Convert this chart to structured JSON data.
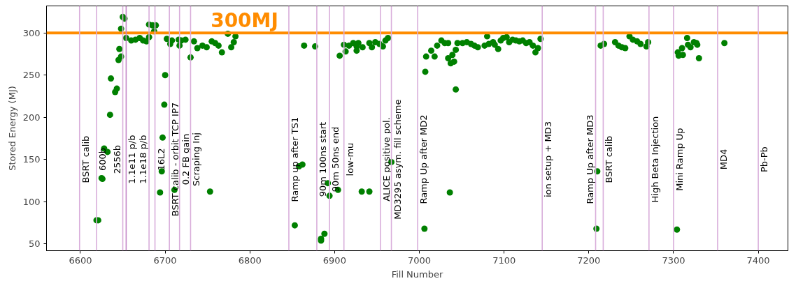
{
  "chart_data": {
    "type": "scatter",
    "xlabel": "Fill Number",
    "ylabel": "Stored Energy (MJ)",
    "marker": "circle",
    "grid": false,
    "xlim": [
      6560,
      7435
    ],
    "ylim": [
      42,
      332
    ],
    "xticks": [
      6600,
      6700,
      6800,
      6900,
      7000,
      7100,
      7200,
      7300,
      7400
    ],
    "yticks": [
      50,
      100,
      150,
      200,
      250,
      300
    ],
    "series": [
      {
        "color": "#008000",
        "x": [
          6619,
          6621,
          6625,
          6626,
          6628,
          6632,
          6635,
          6636,
          6641,
          6643,
          6645,
          6648,
          6646,
          6648,
          6650,
          6652,
          6654,
          6660,
          6665,
          6670,
          6674,
          6678,
          6681,
          6681,
          6685,
          6689,
          6687,
          6700,
          6699,
          6697,
          6696,
          6694,
          6711,
          6702,
          6706,
          6708,
          6716,
          6717,
          6719,
          6724,
          6730,
          6734,
          6738,
          6744,
          6749,
          6755,
          6759,
          6763,
          6767,
          6753,
          6774,
          6778,
          6781,
          6783,
          6853,
          6858,
          6862,
          6864,
          6877,
          6884,
          6884,
          6888,
          6892,
          6894,
          6904,
          6906,
          6911,
          6913,
          6917,
          6922,
          6926,
          6926,
          6928,
          6932,
          6933,
          6941,
          6941,
          6944,
          6948,
          6953,
          6957,
          6960,
          6963,
          6967,
          7006,
          7007,
          7008,
          7014,
          7018,
          7021,
          7026,
          7030,
          7034,
          7034,
          7037,
          7036,
          7039,
          7041,
          7043,
          7043,
          7045,
          7051,
          7056,
          7061,
          7065,
          7069,
          7077,
          7080,
          7082,
          7087,
          7089,
          7093,
          7096,
          7099,
          7103,
          7106,
          7110,
          7114,
          7118,
          7122,
          7126,
          7130,
          7134,
          7137,
          7140,
          7143,
          7209,
          7210,
          7214,
          7218,
          7231,
          7235,
          7239,
          7243,
          7248,
          7252,
          7257,
          7261,
          7268,
          7270,
          7304,
          7305,
          7306,
          7310,
          7311,
          7316,
          7317,
          7320,
          7324,
          7327,
          7328,
          7330,
          7360
        ],
        "values": [
          78,
          78,
          128,
          127,
          163,
          159,
          203,
          246,
          230,
          234,
          268,
          272,
          281,
          305,
          319,
          317,
          294,
          291,
          292,
          294,
          291,
          290,
          295,
          310,
          309,
          309,
          302,
          250,
          215,
          176,
          136,
          111,
          114,
          293,
          287,
          291,
          292,
          285,
          291,
          292,
          271,
          290,
          282,
          285,
          283,
          290,
          288,
          285,
          277,
          112,
          299,
          283,
          289,
          296,
          72,
          142,
          144,
          285,
          284,
          56,
          54,
          62,
          122,
          107,
          114,
          273,
          286,
          278,
          285,
          288,
          284,
          279,
          288,
          112,
          283,
          288,
          112,
          283,
          289,
          287,
          284,
          291,
          294,
          147,
          68,
          254,
          272,
          279,
          272,
          285,
          291,
          288,
          288,
          270,
          264,
          111,
          274,
          266,
          233,
          280,
          288,
          288,
          289,
          287,
          285,
          283,
          285,
          296,
          287,
          289,
          286,
          281,
          291,
          294,
          295,
          289,
          292,
          291,
          290,
          291,
          288,
          289,
          285,
          277,
          282,
          293,
          68,
          136,
          285,
          287,
          289,
          285,
          283,
          282,
          296,
          292,
          290,
          287,
          284,
          289,
          67,
          277,
          273,
          282,
          274,
          294,
          286,
          283,
          289,
          288,
          286,
          270,
          288
        ]
      }
    ],
    "ref_lines": [
      {
        "axis": "y",
        "value": 300,
        "label": "300MJ",
        "color": "#ff8c00"
      },
      {
        "axis": "x",
        "value": 6599,
        "label": "BSRT calib",
        "color": "#d9aedb"
      },
      {
        "axis": "x",
        "value": 6619,
        "label": "600b",
        "color": "#d9aedb"
      },
      {
        "axis": "x",
        "value": 6650,
        "label": "2556b",
        "color": "#d9aedb"
      },
      {
        "axis": "x",
        "value": 6654,
        "label": "1.1e11 p/b",
        "color": "#c488c8"
      },
      {
        "axis": "x",
        "value": 6681,
        "label": "1.1e18 p/b",
        "color": "#d9aedb"
      },
      {
        "axis": "x",
        "value": 6688,
        "label": "16L2",
        "color": "#d9aedb"
      },
      {
        "axis": "x",
        "value": 6705,
        "label": "BSRT calib - orbit TCP IP7",
        "color": "#d9aedb"
      },
      {
        "axis": "x",
        "value": 6717,
        "label": "0.2 FB gain",
        "color": "#d9aedb"
      },
      {
        "axis": "x",
        "value": 6730,
        "label": "Scraping Inj",
        "color": "#d9aedb"
      },
      {
        "axis": "x",
        "value": 6846,
        "label": "Ramp up after TS1",
        "color": "#d9aedb"
      },
      {
        "axis": "x",
        "value": 6879,
        "label": "90m 100ns start",
        "color": "#d9aedb"
      },
      {
        "axis": "x",
        "value": 6894,
        "label": "90m 50ns end",
        "color": "#d9aedb"
      },
      {
        "axis": "x",
        "value": 6911,
        "label": "low-mu",
        "color": "#d9aedb"
      },
      {
        "axis": "x",
        "value": 6954,
        "label": "ALICE positive pol.",
        "color": "#d9aedb"
      },
      {
        "axis": "x",
        "value": 6967,
        "label": "MD3295 asym. fill scheme",
        "color": "#d9aedb"
      },
      {
        "axis": "x",
        "value": 6998,
        "label": "Ramp Up after MD2",
        "color": "#d9aedb"
      },
      {
        "axis": "x",
        "value": 7145,
        "label": "ion setup + MD3",
        "color": "#d9aedb"
      },
      {
        "axis": "x",
        "value": 7208,
        "label": "Ramp Up after MD3",
        "color": "#d9aedb"
      },
      {
        "axis": "x",
        "value": 7217,
        "label": "BSRT calib",
        "color": "#d9aedb"
      },
      {
        "axis": "x",
        "value": 7271,
        "label": "High Beta Injection",
        "color": "#d9aedb"
      },
      {
        "axis": "x",
        "value": 7300,
        "label": "Mini Ramp Up",
        "color": "#d9aedb"
      },
      {
        "axis": "x",
        "value": 7352,
        "label": "MD4",
        "color": "#d9aedb"
      },
      {
        "axis": "x",
        "value": 7400,
        "label": "Pb-Pb",
        "color": "#d9aedb"
      }
    ]
  }
}
